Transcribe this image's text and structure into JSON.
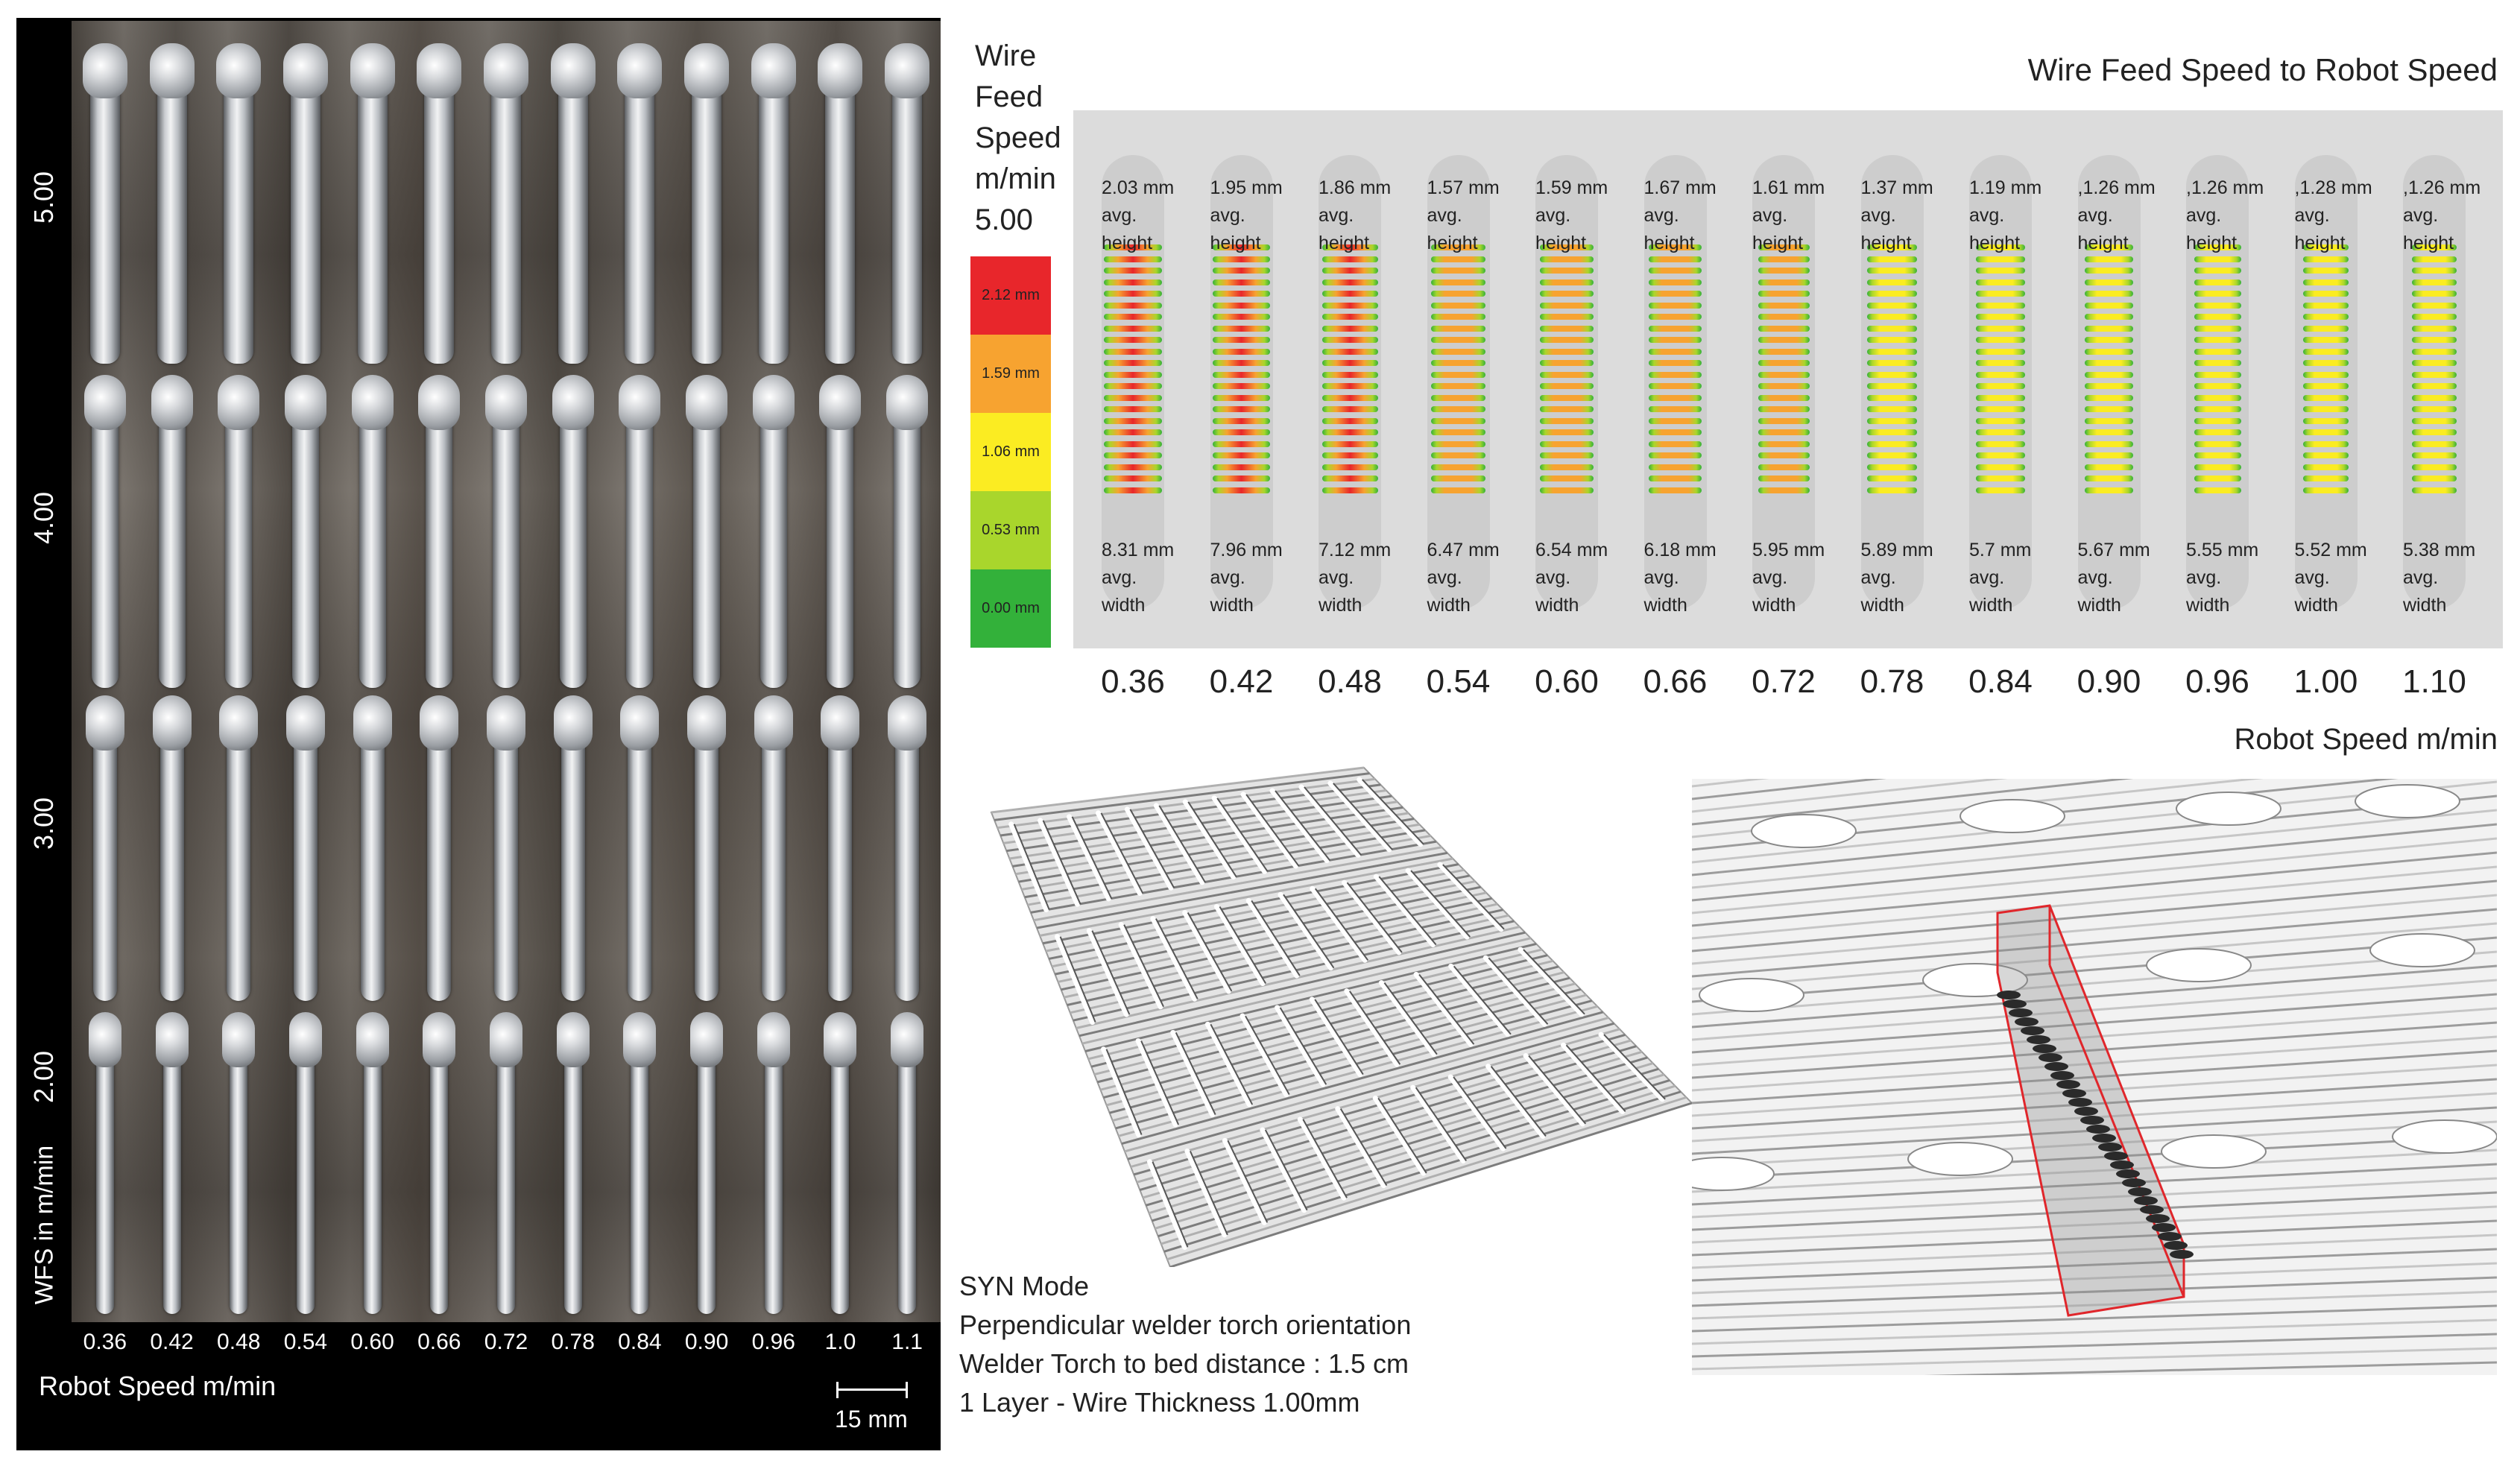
{
  "photo": {
    "row_labels": [
      "5.00",
      "4.00",
      "3.00",
      "2.00"
    ],
    "y_axis_title": "WFS in m/min",
    "x_ticks": [
      "0.36",
      "0.42",
      "0.48",
      "0.54",
      "0.60",
      "0.66",
      "0.72",
      "0.78",
      "0.84",
      "0.90",
      "0.96",
      "1.0",
      "1.1"
    ],
    "x_axis_title": "Robot Speed m/min",
    "scale_bar_label": "15 mm"
  },
  "chart": {
    "legend_title_lines": [
      "Wire",
      "Feed",
      "Speed",
      "m/min",
      "5.00"
    ],
    "title": "Wire Feed Speed to Robot Speed",
    "colorbar": [
      {
        "label": "2.12 mm",
        "color": "#e8262b"
      },
      {
        "label": "1.59 mm",
        "color": "#f7a330"
      },
      {
        "label": "1.06 mm",
        "color": "#fbec22"
      },
      {
        "label": "0.53 mm",
        "color": "#a9d62c"
      },
      {
        "label": "0.00 mm",
        "color": "#33b13a"
      }
    ],
    "columns": [
      {
        "speed": "0.36",
        "height": "2.03 mm",
        "width": "8.31 mm"
      },
      {
        "speed": "0.42",
        "height": "1.95 mm",
        "width": "7.96 mm"
      },
      {
        "speed": "0.48",
        "height": "1.86 mm",
        "width": "7.12 mm"
      },
      {
        "speed": "0.54",
        "height": "1.57 mm",
        "width": "6.47 mm"
      },
      {
        "speed": "0.60",
        "height": "1.59 mm",
        "width": "6.54 mm"
      },
      {
        "speed": "0.66",
        "height": "1.67 mm",
        "width": "6.18 mm"
      },
      {
        "speed": "0.72",
        "height": "1.61 mm",
        "width": "5.95 mm"
      },
      {
        "speed": "0.78",
        "height": "1.37 mm",
        "width": "5.89 mm"
      },
      {
        "speed": "0.84",
        "height": "1.19 mm",
        "width": "5.7 mm"
      },
      {
        "speed": "0.90",
        "height": ",1.26 mm",
        "width": "5.67 mm"
      },
      {
        "speed": "0.96",
        "height": ",1.26 mm",
        "width": "5.55 mm"
      },
      {
        "speed": "1.00",
        "height": ",1.28 mm",
        "width": "5.52 mm"
      },
      {
        "speed": "1.10",
        "height": ",1.26 mm",
        "width": "5.38 mm"
      }
    ],
    "avg_label": "avg.",
    "height_label": "height",
    "width_label": "width",
    "x_axis_title": "Robot Speed m/min"
  },
  "info": {
    "lines": [
      "SYN Mode",
      "Perpendicular welder torch orientation",
      "Welder Torch to bed distance : 1.5 cm",
      "1 Layer - Wire Thickness 1.00mm"
    ]
  }
}
